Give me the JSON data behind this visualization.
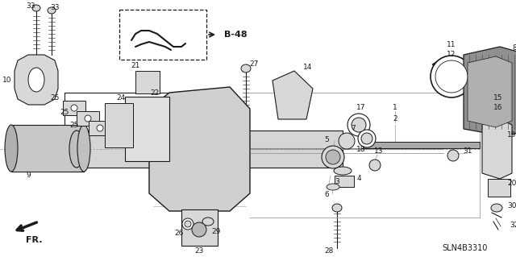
{
  "background_color": "#ffffff",
  "diagram_color": "#1a1a1a",
  "light_gray": "#cccccc",
  "mid_gray": "#999999",
  "dark_gray": "#666666",
  "fill_gray": "#d8d8d8",
  "fill_light": "#ebebeb",
  "label_fontsize": 6.5,
  "sln_text": "SLN4B3310",
  "b48_text": "B-48",
  "fr_text": "FR.",
  "figsize": [
    6.4,
    3.19
  ],
  "dpi": 100
}
